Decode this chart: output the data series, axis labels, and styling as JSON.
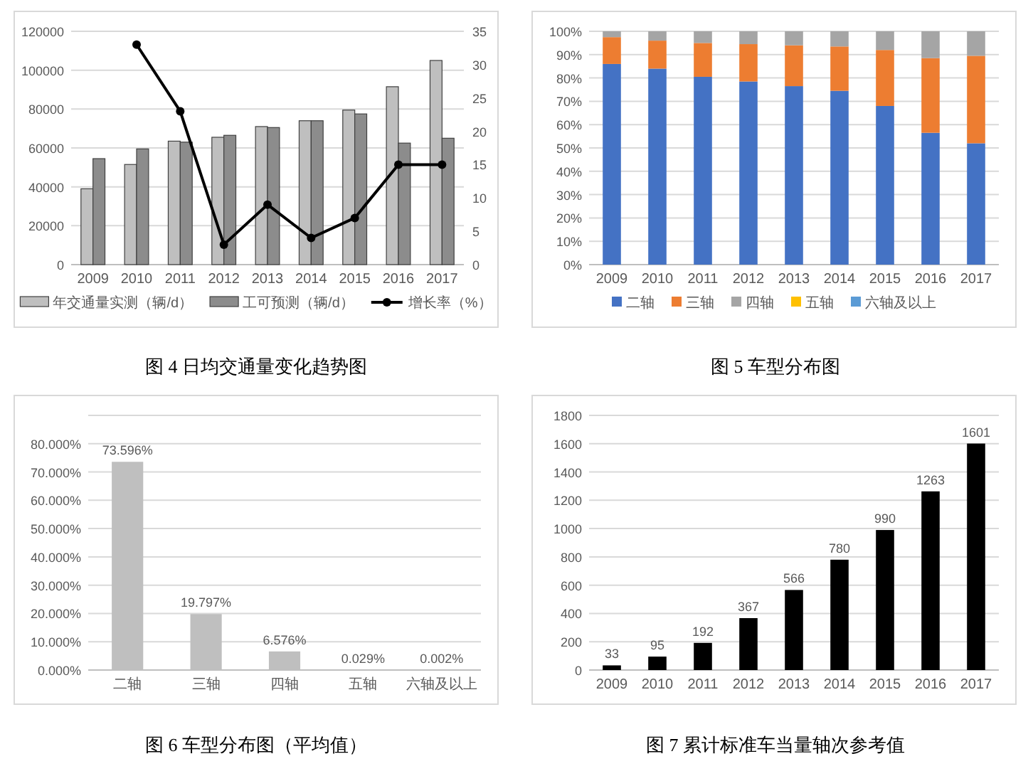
{
  "chart_data": [
    {
      "type": "bar",
      "title": "图 4 日均交通量变化趋势图",
      "categories": [
        "2009",
        "2010",
        "2011",
        "2012",
        "2013",
        "2014",
        "2015",
        "2016",
        "2017"
      ],
      "series": [
        {
          "name": "年交通量实测（辆/d）",
          "color": "#bfbfbf",
          "values": [
            39000,
            51500,
            63500,
            65500,
            71000,
            74000,
            79500,
            91500,
            105000
          ]
        },
        {
          "name": "工可预测（辆/d）",
          "color": "#8c8c8c",
          "values": [
            54500,
            59500,
            63000,
            66500,
            70500,
            74000,
            77500,
            62500,
            65000
          ]
        },
        {
          "name": "增长率（%）",
          "type": "line",
          "axis": "y2",
          "color": "#000000",
          "values": [
            null,
            33,
            23,
            3,
            9,
            4,
            7,
            15,
            15
          ]
        }
      ],
      "ylim": [
        0,
        120000
      ],
      "yticks": [
        0,
        20000,
        40000,
        60000,
        80000,
        100000,
        120000
      ],
      "y2lim": [
        0,
        35
      ],
      "y2ticks": [
        0,
        5,
        10,
        15,
        20,
        25,
        30,
        35
      ],
      "grid": "y",
      "legend": "bottom",
      "marker": "circle"
    },
    {
      "type": "bar",
      "title": "图 5 车型分布图",
      "stacked": true,
      "categories": [
        "2009",
        "2010",
        "2011",
        "2012",
        "2013",
        "2014",
        "2015",
        "2016",
        "2017"
      ],
      "series": [
        {
          "name": "二轴",
          "color": "#4472c4",
          "values": [
            86,
            84,
            80.5,
            78.5,
            76.5,
            74.5,
            68,
            56.5,
            52
          ]
        },
        {
          "name": "三轴",
          "color": "#ed7d31",
          "values": [
            11.5,
            12,
            14.5,
            16,
            17.5,
            19,
            24,
            32,
            37.5
          ]
        },
        {
          "name": "四轴",
          "color": "#a5a5a5",
          "values": [
            2.5,
            4,
            5,
            5.5,
            6,
            6.5,
            8,
            11.5,
            10.5
          ]
        },
        {
          "name": "五轴",
          "color": "#ffc000",
          "values": [
            0,
            0,
            0,
            0,
            0,
            0,
            0,
            0,
            0
          ]
        },
        {
          "name": "六轴及以上",
          "color": "#5b9bd5",
          "values": [
            0,
            0,
            0,
            0,
            0,
            0,
            0,
            0,
            0
          ]
        }
      ],
      "ylim": [
        0,
        100
      ],
      "yticks": [
        {
          "value": 0,
          "label": "0%"
        },
        {
          "value": 10,
          "label": "10%"
        },
        {
          "value": 20,
          "label": "20%"
        },
        {
          "value": 30,
          "label": "30%"
        },
        {
          "value": 40,
          "label": "40%"
        },
        {
          "value": 50,
          "label": "50%"
        },
        {
          "value": 60,
          "label": "60%"
        },
        {
          "value": 70,
          "label": "70%"
        },
        {
          "value": 80,
          "label": "80%"
        },
        {
          "value": 90,
          "label": "90%"
        },
        {
          "value": 100,
          "label": "100%"
        }
      ],
      "grid": "y",
      "legend": "bottom"
    },
    {
      "type": "bar",
      "title": "图 6 车型分布图（平均值）",
      "categories": [
        "二轴",
        "三轴",
        "四轴",
        "五轴",
        "六轴及以上"
      ],
      "values": [
        73.596,
        19.797,
        6.576,
        0.029,
        0.002
      ],
      "color": "#bfbfbf",
      "value_labels": [
        "73.596%",
        "19.797%",
        "6.576%",
        "0.029%",
        "0.002%"
      ],
      "ylim": [
        0,
        90
      ],
      "yticks": [
        {
          "value": 0,
          "label": "0.000%"
        },
        {
          "value": 10,
          "label": "10.000%"
        },
        {
          "value": 20,
          "label": "20.000%"
        },
        {
          "value": 30,
          "label": "30.000%"
        },
        {
          "value": 40,
          "label": "40.000%"
        },
        {
          "value": 50,
          "label": "50.000%"
        },
        {
          "value": 60,
          "label": "60.000%"
        },
        {
          "value": 70,
          "label": "70.000%"
        },
        {
          "value": 80,
          "label": "80.000%"
        },
        {
          "value": 90,
          "label": null
        }
      ],
      "grid": "y"
    },
    {
      "type": "bar",
      "title": "图 7 累计标准车当量轴次参考值",
      "categories": [
        "2009",
        "2010",
        "2011",
        "2012",
        "2013",
        "2014",
        "2015",
        "2016",
        "2017"
      ],
      "values": [
        33,
        95,
        192,
        367,
        566,
        780,
        990,
        1263,
        1601
      ],
      "color": "#000000",
      "data_labels": true,
      "ylim": [
        0,
        1800
      ],
      "yticks": [
        0,
        200,
        400,
        600,
        800,
        1000,
        1200,
        1400,
        1600,
        1800
      ],
      "grid": "y"
    }
  ]
}
